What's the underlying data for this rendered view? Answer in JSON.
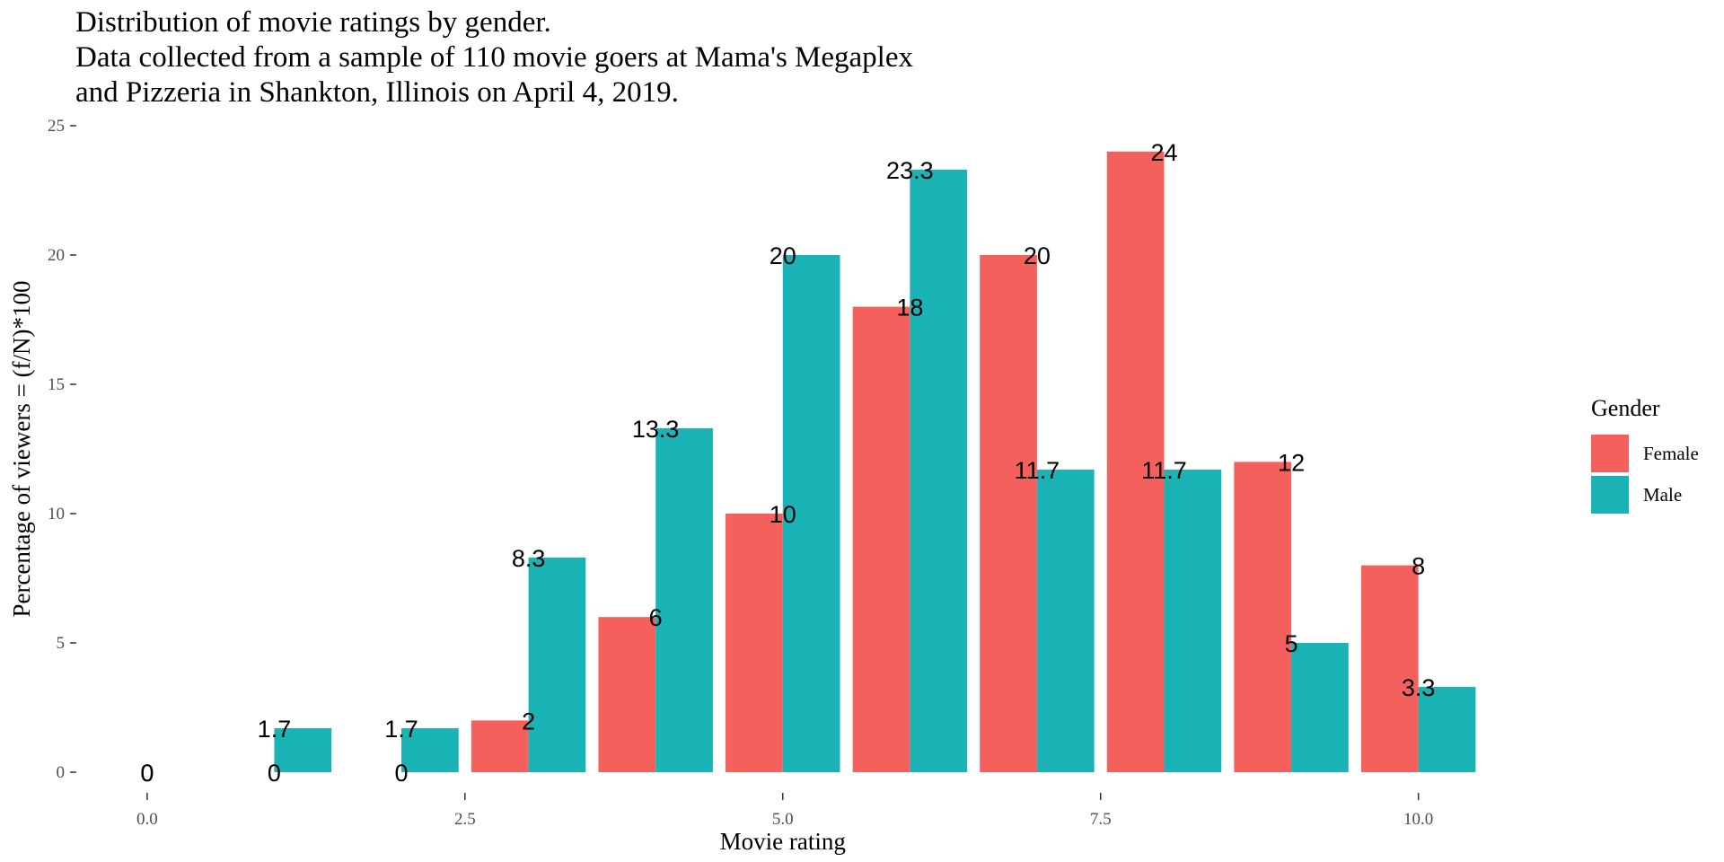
{
  "title": {
    "line1": "Distribution of movie ratings by gender.",
    "line2": "Data collected from a sample of 110 movie goers at Mama's Megaplex",
    "line3": "and Pizzeria in Shankton, Illinois on April 4, 2019."
  },
  "legend": {
    "title": "Gender",
    "items": [
      {
        "label": "Female",
        "color": "#F4605C"
      },
      {
        "label": "Male",
        "color": "#19B3B6"
      }
    ]
  },
  "chart_data": {
    "type": "bar",
    "xlabel": "Movie rating",
    "ylabel": "Percentage of viewers = (f/N)*100",
    "x": [
      0,
      1,
      2,
      3,
      4,
      5,
      6,
      7,
      8,
      9,
      10
    ],
    "xlim": [
      -0.55,
      10.85
    ],
    "ylim": [
      0,
      25
    ],
    "xticks": [
      0,
      2.5,
      5,
      7.5,
      10
    ],
    "xtick_labels": [
      "0.0",
      "2.5",
      "5.0",
      "7.5",
      "10.0"
    ],
    "yticks": [
      0,
      5,
      10,
      15,
      20,
      25
    ],
    "ytick_labels": [
      "0",
      "5",
      "10",
      "15",
      "20",
      "25"
    ],
    "grid": false,
    "legend_position": "right",
    "series": [
      {
        "name": "Female",
        "color": "#F4605C",
        "values": [
          0,
          0,
          0,
          2,
          6,
          10,
          18,
          20,
          24,
          12,
          8
        ],
        "labels": [
          "0",
          "0",
          "0",
          "2",
          "6",
          "10",
          "18",
          "20",
          "24",
          "12",
          "8"
        ]
      },
      {
        "name": "Male",
        "color": "#19B3B6",
        "values": [
          null,
          1.7,
          1.7,
          8.3,
          13.3,
          20,
          23.3,
          11.7,
          11.7,
          5,
          3.3
        ],
        "labels": [
          "0",
          "1.7",
          "1.7",
          "8.3",
          "13.3",
          "20",
          "23.3",
          "11.7",
          "11.7",
          "5",
          "3.3"
        ]
      }
    ]
  }
}
